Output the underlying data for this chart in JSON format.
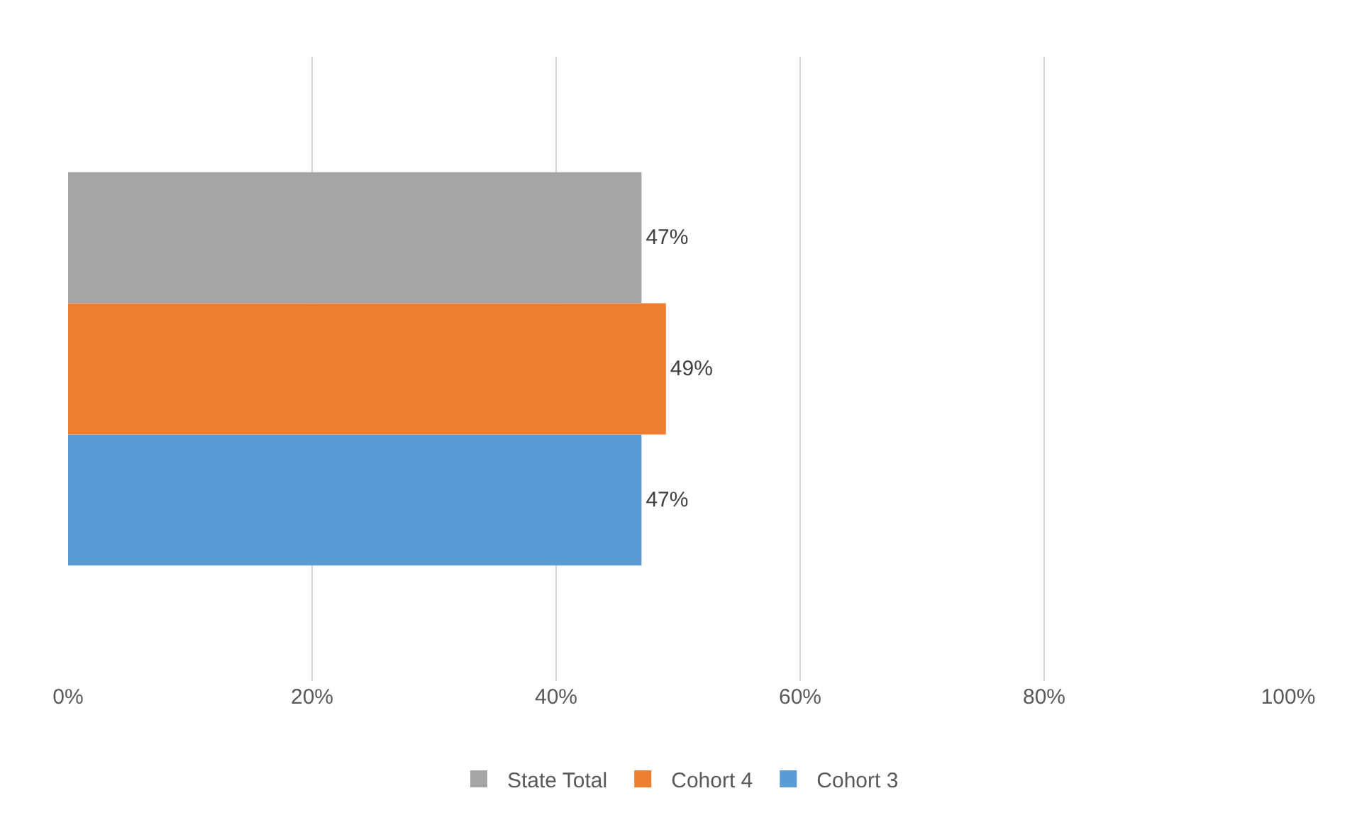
{
  "chart_data": {
    "type": "bar",
    "orientation": "horizontal",
    "categories": [
      null
    ],
    "series": [
      {
        "name": "State Total",
        "color": "#a5a5a5",
        "values": [
          47
        ],
        "value_labels": [
          "47%"
        ]
      },
      {
        "name": "Cohort 4",
        "color": "#ed7d31",
        "values": [
          49
        ],
        "value_labels": [
          "49%"
        ]
      },
      {
        "name": "Cohort 3",
        "color": "#5b9bd5",
        "values": [
          47
        ],
        "value_labels": [
          "47%"
        ]
      }
    ],
    "xlim": [
      0,
      100
    ],
    "xticks": [
      {
        "value": 0,
        "label": "0%"
      },
      {
        "value": 20,
        "label": "20%"
      },
      {
        "value": 40,
        "label": "40%"
      },
      {
        "value": 60,
        "label": "60%"
      },
      {
        "value": 80,
        "label": "80%"
      },
      {
        "value": 100,
        "label": "100%"
      }
    ],
    "grid": "x",
    "legend": "bottom"
  }
}
